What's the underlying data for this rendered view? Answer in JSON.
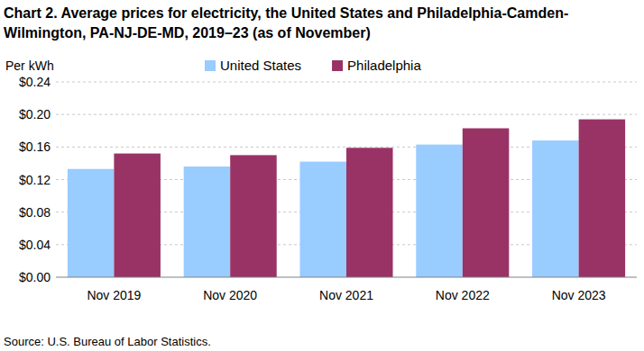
{
  "chart_data": {
    "type": "bar",
    "title": "Chart 2. Average prices for electricity, the United States and Philadelphia-Camden-Wilmington, PA-NJ-DE-MD, 2019–23 (as of November)",
    "y_label": "Per kWh",
    "source": "Source: U.S. Bureau of Labor Statistics.",
    "categories": [
      "Nov 2019",
      "Nov 2020",
      "Nov 2021",
      "Nov 2022",
      "Nov 2023"
    ],
    "series": [
      {
        "name": "United States",
        "color": "#99ccff",
        "values": [
          0.133,
          0.136,
          0.142,
          0.163,
          0.168
        ]
      },
      {
        "name": "Philadelphia",
        "color": "#993366",
        "values": [
          0.152,
          0.15,
          0.159,
          0.183,
          0.194
        ]
      }
    ],
    "ylim": [
      0,
      0.24
    ],
    "yticks": [
      {
        "value": 0,
        "label": "$0.00"
      },
      {
        "value": 0.04,
        "label": "$0.04"
      },
      {
        "value": 0.08,
        "label": "$0.08"
      },
      {
        "value": 0.12,
        "label": "$0.12"
      },
      {
        "value": 0.16,
        "label": "$0.16"
      },
      {
        "value": 0.2,
        "label": "$0.20"
      },
      {
        "value": 0.24,
        "label": "$0.24"
      }
    ],
    "grid": true,
    "legend": "top"
  }
}
